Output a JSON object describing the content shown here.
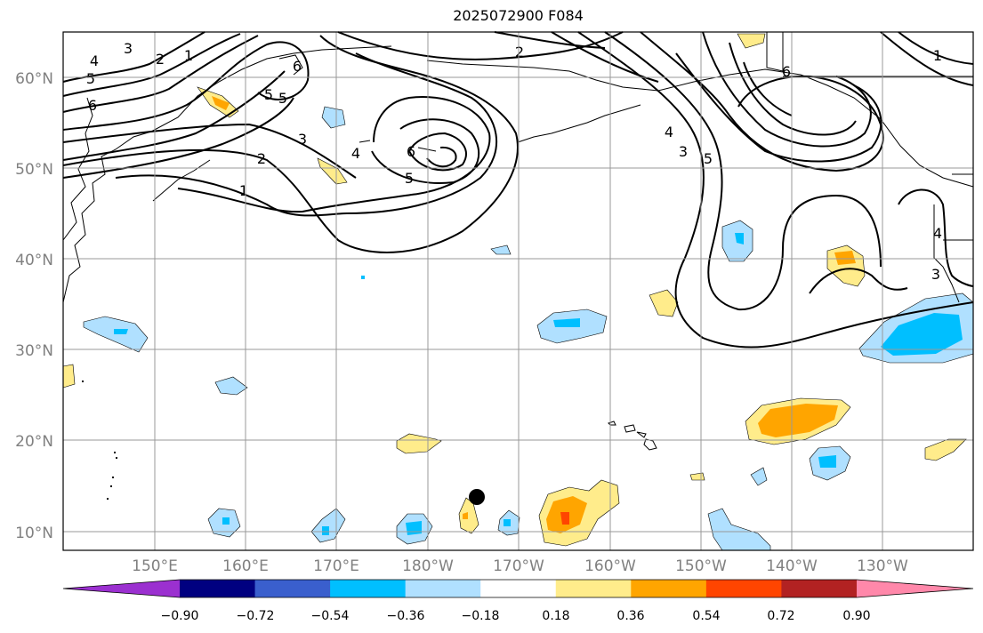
{
  "title": "2025072900 F084",
  "lat_labels": [
    "60°N",
    "50°N",
    "40°N",
    "30°N",
    "20°N",
    "10°N"
  ],
  "lon_labels": [
    "150°E",
    "160°E",
    "170°E",
    "180°W",
    "170°W",
    "160°W",
    "150°W",
    "140°W",
    "130°W"
  ],
  "contour_labels": [
    "1",
    "2",
    "3",
    "4",
    "5",
    "6"
  ],
  "colorbar": {
    "tick_labels": [
      "−0.90",
      "−0.72",
      "−0.54",
      "−0.36",
      "−0.18",
      "0.18",
      "0.36",
      "0.54",
      "0.72",
      "0.90"
    ],
    "colors": [
      "#9b30d0",
      "#000080",
      "#3a5fcd",
      "#00bfff",
      "#b0e0ff",
      "#ffffff",
      "#ffec8b",
      "#ffa500",
      "#ff4500",
      "#b22222",
      "#ff88aa"
    ]
  },
  "marker": {
    "name": "black-dot"
  }
}
